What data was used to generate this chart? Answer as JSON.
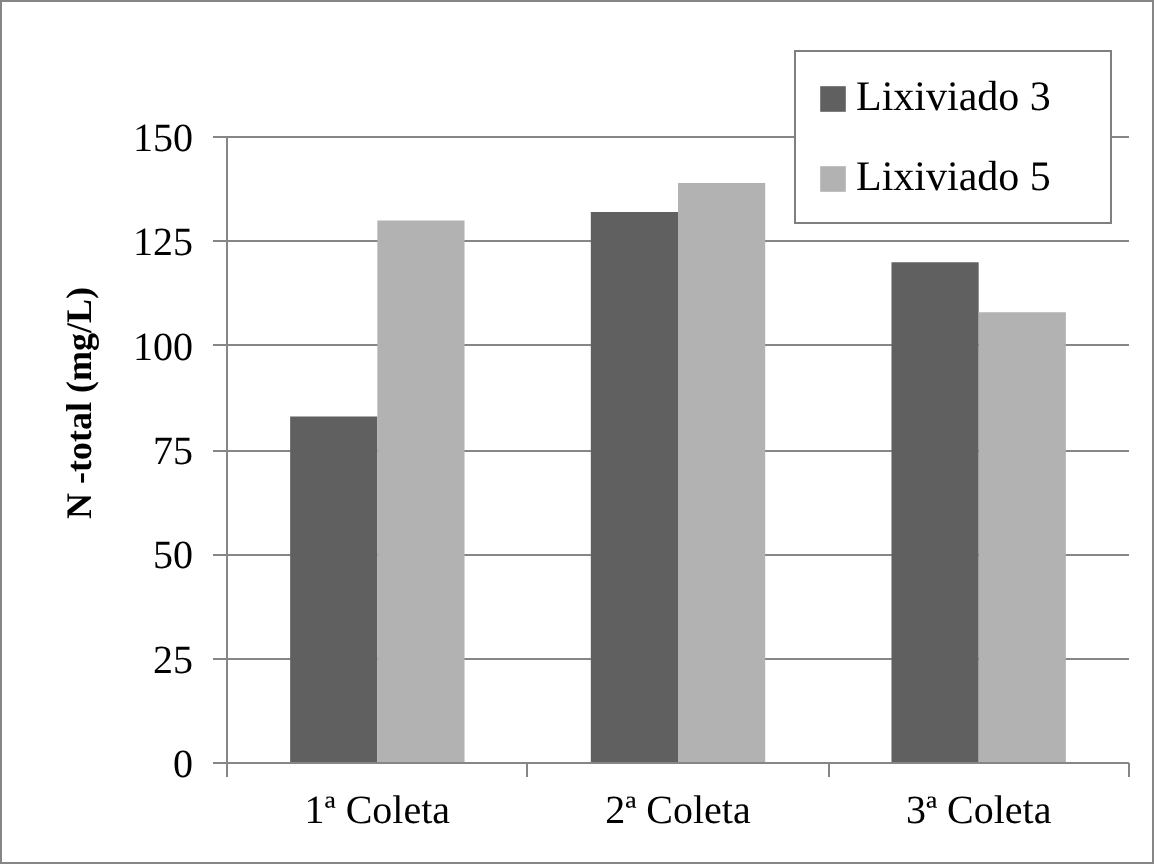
{
  "chart_data": {
    "type": "bar",
    "ylabel": "N -total (mg/L)",
    "categories": [
      "1ª Coleta",
      "2ª Coleta",
      "3ª Coleta"
    ],
    "series": [
      {
        "name": "Lixiviado 3",
        "color": "#606060",
        "values": [
          83,
          132,
          120
        ]
      },
      {
        "name": "Lixiviado 5",
        "color": "#b2b2b2",
        "values": [
          130,
          139,
          108
        ]
      }
    ],
    "ylim": [
      0,
      150
    ],
    "yticks": [
      0,
      25,
      50,
      75,
      100,
      125,
      150
    ],
    "grid": "y",
    "legend": "top right"
  }
}
